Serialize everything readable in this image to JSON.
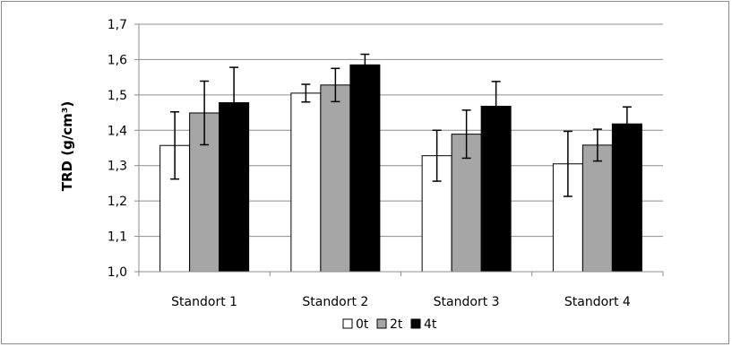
{
  "chart_data": {
    "type": "bar",
    "title": "",
    "xlabel": "",
    "ylabel": "TRD (g/cm³)",
    "ylim": [
      1.0,
      1.7
    ],
    "yticks": [
      "1,0",
      "1,1",
      "1,2",
      "1,3",
      "1,4",
      "1,5",
      "1,6",
      "1,7"
    ],
    "grid": true,
    "legend_position": "bottom",
    "categories": [
      "Standort 1",
      "Standort 2",
      "Standort 3",
      "Standort 4"
    ],
    "series": [
      {
        "name": "0t",
        "color": "#ffffff",
        "values": [
          1.357,
          1.505,
          1.328,
          1.305
        ],
        "error": [
          0.095,
          0.025,
          0.072,
          0.092
        ]
      },
      {
        "name": "2t",
        "color": "#a6a6a6",
        "values": [
          1.449,
          1.528,
          1.389,
          1.358
        ],
        "error": [
          0.09,
          0.047,
          0.068,
          0.045
        ]
      },
      {
        "name": "4t",
        "color": "#000000",
        "values": [
          1.478,
          1.585,
          1.468,
          1.418
        ],
        "error": [
          0.1,
          0.03,
          0.07,
          0.048
        ]
      }
    ]
  }
}
